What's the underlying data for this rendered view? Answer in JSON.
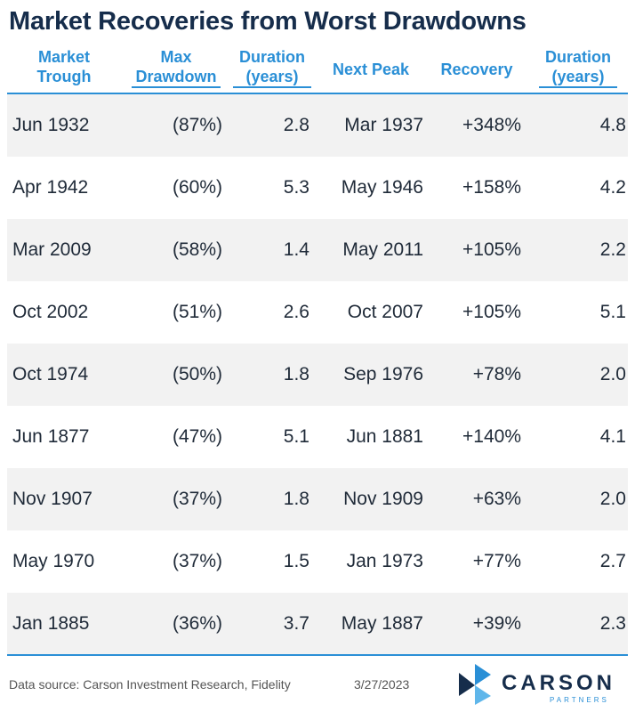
{
  "title": "Market Recoveries from Worst Drawdowns",
  "headers": [
    "Market\nTrough",
    "Max\nDrawdown",
    "Duration\n(years)",
    "Next Peak",
    "Recovery",
    "Duration\n(years)"
  ],
  "rows": [
    [
      "Jun 1932",
      "(87%)",
      "2.8",
      "Mar 1937",
      "+348%",
      "4.8"
    ],
    [
      "Apr 1942",
      "(60%)",
      "5.3",
      "May 1946",
      "+158%",
      "4.2"
    ],
    [
      "Mar 2009",
      "(58%)",
      "1.4",
      "May 2011",
      "+105%",
      "2.2"
    ],
    [
      "Oct 2002",
      "(51%)",
      "2.6",
      "Oct 2007",
      "+105%",
      "5.1"
    ],
    [
      "Oct 1974",
      "(50%)",
      "1.8",
      "Sep 1976",
      "+78%",
      "2.0"
    ],
    [
      "Jun 1877",
      "(47%)",
      "5.1",
      "Jun 1881",
      "+140%",
      "4.1"
    ],
    [
      "Nov 1907",
      "(37%)",
      "1.8",
      "Nov 1909",
      "+63%",
      "2.0"
    ],
    [
      "May 1970",
      "(37%)",
      "1.5",
      "Jan 1973",
      "+77%",
      "2.7"
    ],
    [
      "Jan 1885",
      "(36%)",
      "3.7",
      "May 1887",
      "+39%",
      "2.3"
    ]
  ],
  "footer": {
    "source": "Data source: Carson Investment Research, Fidelity",
    "date": "3/27/2023"
  },
  "logo": {
    "name": "CARSON",
    "sub": "PARTNERS"
  },
  "colors": {
    "accent": "#2a8fd6",
    "title": "#162d4b",
    "shade": "#f2f2f2"
  }
}
